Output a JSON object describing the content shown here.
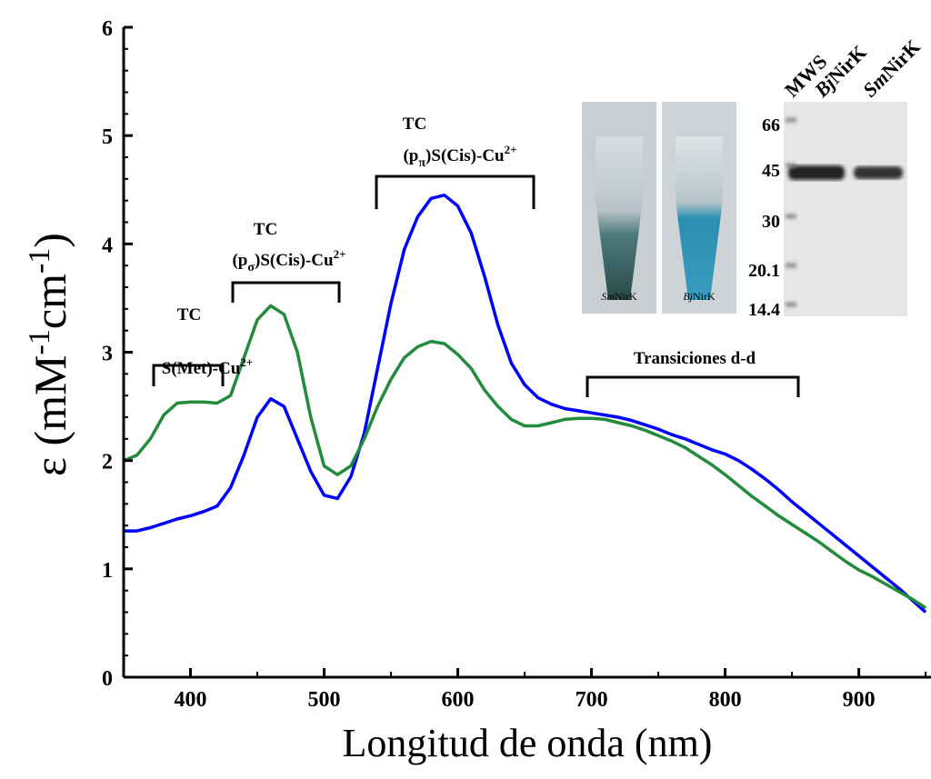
{
  "chart_data": {
    "type": "line",
    "x_label": "Longitud de onda (nm)",
    "y_label": [
      "ε (mM",
      "-1",
      "cm",
      "-1",
      ")"
    ],
    "x": [
      350,
      360,
      370,
      380,
      390,
      400,
      410,
      420,
      430,
      440,
      450,
      460,
      470,
      480,
      490,
      500,
      510,
      520,
      530,
      540,
      550,
      560,
      570,
      580,
      590,
      600,
      610,
      620,
      630,
      640,
      650,
      660,
      670,
      680,
      690,
      700,
      710,
      720,
      730,
      740,
      750,
      760,
      770,
      780,
      790,
      800,
      810,
      820,
      830,
      840,
      850,
      860,
      870,
      880,
      890,
      900,
      910,
      920,
      930,
      940,
      950
    ],
    "series": [
      {
        "color": "#0000ff",
        "values": [
          1.35,
          1.35,
          1.38,
          1.42,
          1.46,
          1.49,
          1.53,
          1.58,
          1.75,
          2.05,
          2.4,
          2.57,
          2.5,
          2.2,
          1.9,
          1.68,
          1.65,
          1.85,
          2.25,
          2.85,
          3.45,
          3.95,
          4.25,
          4.42,
          4.45,
          4.35,
          4.1,
          3.7,
          3.25,
          2.9,
          2.7,
          2.58,
          2.52,
          2.48,
          2.46,
          2.44,
          2.42,
          2.4,
          2.37,
          2.33,
          2.29,
          2.24,
          2.2,
          2.15,
          2.1,
          2.06,
          2.0,
          1.92,
          1.83,
          1.73,
          1.62,
          1.52,
          1.42,
          1.32,
          1.22,
          1.12,
          1.02,
          0.92,
          0.82,
          0.71,
          0.6
        ]
      },
      {
        "color": "#228b3c",
        "values": [
          2.0,
          2.05,
          2.2,
          2.42,
          2.53,
          2.54,
          2.54,
          2.53,
          2.6,
          2.95,
          3.3,
          3.43,
          3.35,
          3.0,
          2.4,
          1.95,
          1.87,
          1.95,
          2.2,
          2.5,
          2.75,
          2.95,
          3.05,
          3.1,
          3.08,
          2.98,
          2.85,
          2.65,
          2.5,
          2.38,
          2.32,
          2.32,
          2.35,
          2.38,
          2.39,
          2.39,
          2.38,
          2.35,
          2.32,
          2.28,
          2.23,
          2.18,
          2.12,
          2.04,
          1.96,
          1.87,
          1.77,
          1.67,
          1.58,
          1.49,
          1.41,
          1.33,
          1.25,
          1.16,
          1.07,
          0.99,
          0.93,
          0.86,
          0.79,
          0.72,
          0.64
        ]
      }
    ],
    "xlim": [
      350,
      954
    ],
    "ylim": [
      0,
      6
    ],
    "xticks": [
      400,
      500,
      600,
      700,
      800,
      900
    ],
    "yticks": [
      0,
      1,
      2,
      3,
      4,
      5,
      6
    ],
    "xminor": [
      350,
      450,
      550,
      650,
      750,
      850,
      950
    ],
    "yminor": [
      0.2,
      0.4,
      0.6,
      0.8,
      1.2,
      1.4,
      1.6,
      1.8,
      2.2,
      2.4,
      2.6,
      2.8,
      3.2,
      3.4,
      3.6,
      3.8,
      4.2,
      4.4,
      4.6,
      4.8,
      5.2,
      5.4,
      5.6,
      5.8
    ],
    "annotations": [
      {
        "lines": [
          [
            "TC"
          ],
          [
            "S(Met)-Cu",
            "2+"
          ]
        ]
      },
      {
        "lines": [
          [
            "TC"
          ],
          [
            "(p",
            "σ",
            ")S(Cis)-Cu",
            "2+"
          ]
        ]
      },
      {
        "lines": [
          [
            "TC"
          ],
          [
            "(p",
            "π",
            ")S(Cis)-Cu",
            "2+"
          ]
        ]
      },
      {
        "lines": [
          [
            "Transiciones d-d"
          ]
        ]
      }
    ],
    "inset": {
      "tubes": [
        [
          "Sm",
          "NirK"
        ],
        [
          "Bj",
          "NirK"
        ]
      ],
      "lanes": [
        [
          "MWS"
        ],
        [
          "Bj",
          "NirK"
        ],
        [
          "Sm",
          "NirK"
        ]
      ],
      "markers": [
        "66",
        "45",
        "30",
        "20.1",
        "14.4"
      ]
    }
  }
}
